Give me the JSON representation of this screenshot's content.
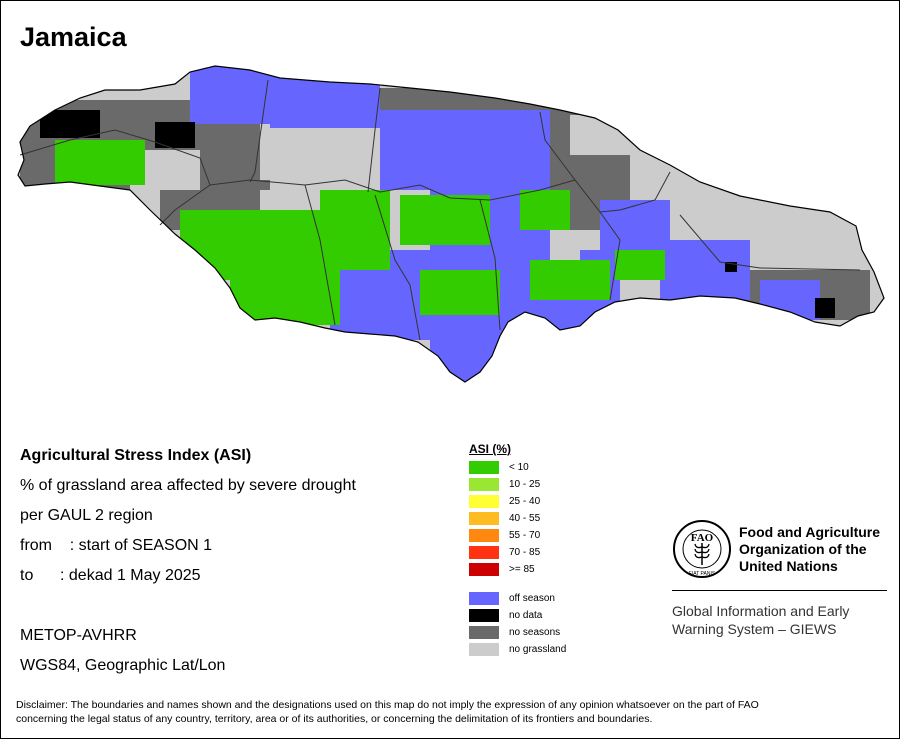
{
  "title": "Jamaica",
  "info": {
    "line1": "Agricultural Stress Index (ASI)",
    "line2": "% of grassland area affected by severe drought",
    "line3": "per GAUL 2 region",
    "line4": "from    : start of SEASON 1",
    "line5": "to      : dekad 1 May 2025",
    "line6": "METOP-AVHRR",
    "line7": "WGS84, Geographic Lat/Lon"
  },
  "legend": {
    "title": "ASI (%)",
    "items": [
      {
        "label": "< 10",
        "color": "#33cc00"
      },
      {
        "label": "10 - 25",
        "color": "#99e633"
      },
      {
        "label": "25 - 40",
        "color": "#ffff33"
      },
      {
        "label": "40 - 55",
        "color": "#ffbb22"
      },
      {
        "label": "55 - 70",
        "color": "#ff8811"
      },
      {
        "label": "70 - 85",
        "color": "#ff3311"
      },
      {
        "label": ">= 85",
        "color": "#cc0000"
      },
      {
        "label": "off season",
        "color": "#6666ff"
      },
      {
        "label": "no data",
        "color": "#000000"
      },
      {
        "label": "no seasons",
        "color": "#6a6a6a"
      },
      {
        "label": "no grassland",
        "color": "#cccccc"
      }
    ]
  },
  "fao": {
    "logo_text": "FAO",
    "logo_motto": "FIAT PANIS",
    "name_line1": "Food and Agriculture",
    "name_line2": "Organization of the",
    "name_line3": "United Nations",
    "giews_line1": "Global Information and Early",
    "giews_line2": "Warning System – GIEWS"
  },
  "disclaimer_line1": "Disclaimer: The boundaries and names shown and the designations used on this map do not imply the expression of any opinion whatsoever on the part of FAO",
  "disclaimer_line2": "concerning the legal status of any country, territory, area or of its authorities, or concerning the delimitation of its frontiers and boundaries."
}
